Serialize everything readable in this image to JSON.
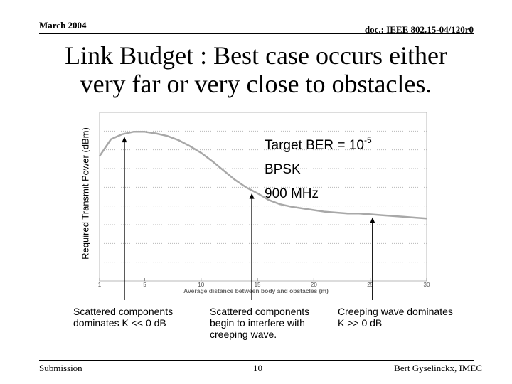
{
  "header": {
    "date": "March 2004",
    "doc_id": "doc.: IEEE 802.15-04/120r0"
  },
  "title": {
    "line1": "Link Budget : Best case occurs either",
    "line2": "very far or very close to obstacles."
  },
  "info": {
    "ber_prefix": "Target BER = 10",
    "ber_exponent": "-5",
    "modulation": "BPSK",
    "frequency": "900 MHz"
  },
  "notes": {
    "left": "Scattered components dominates K << 0 dB",
    "middle": "Scattered components begin to interfere with creeping wave.",
    "right": "Creeping wave dominates  K >> 0 dB"
  },
  "footer": {
    "left": "Submission",
    "page": "10",
    "author": "Bert Gyselinckx, IMEC"
  },
  "chart_data": {
    "type": "line",
    "xlabel": "Average distance between body and obstacles (m)",
    "ylabel": "Required Transmit Power (dBm)",
    "x_ticks": [
      "1",
      "5",
      "10",
      "15",
      "20",
      "25",
      "30"
    ],
    "xlim": [
      1,
      30
    ],
    "grid": true,
    "series": [
      {
        "x": [
          1,
          2,
          3,
          4,
          5,
          6,
          7,
          8,
          9,
          10,
          11,
          12,
          13,
          14,
          15,
          16,
          17,
          18,
          19,
          20,
          21,
          22,
          23,
          24,
          25,
          26,
          27,
          28,
          29,
          30
        ],
        "y": [
          0.74,
          0.84,
          0.87,
          0.885,
          0.885,
          0.875,
          0.86,
          0.835,
          0.8,
          0.76,
          0.71,
          0.655,
          0.6,
          0.555,
          0.52,
          0.48,
          0.455,
          0.44,
          0.43,
          0.42,
          0.41,
          0.405,
          0.4,
          0.4,
          0.395,
          0.39,
          0.385,
          0.38,
          0.375,
          0.37
        ]
      }
    ],
    "annotation_x": [
      3.2,
      14.5,
      25.2
    ],
    "colors": {
      "curve": "#a8a8a8",
      "grid": "#b8b8b8",
      "arrow": "#000000"
    }
  }
}
